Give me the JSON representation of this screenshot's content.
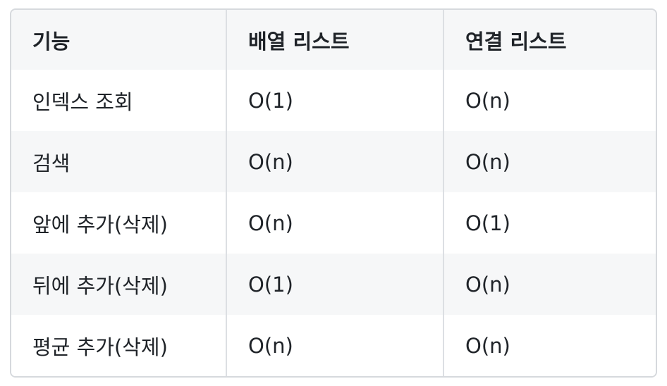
{
  "table": {
    "headers": [
      "기능",
      "배열 리스트",
      "연결 리스트"
    ],
    "rows": [
      [
        "인덱스 조회",
        "O(1)",
        "O(n)"
      ],
      [
        "검색",
        "O(n)",
        "O(n)"
      ],
      [
        "앞에 추가(삭제)",
        "O(n)",
        "O(1)"
      ],
      [
        "뒤에 추가(삭제)",
        "O(1)",
        "O(n)"
      ],
      [
        "평균 추가(삭제)",
        "O(n)",
        "O(n)"
      ]
    ]
  }
}
